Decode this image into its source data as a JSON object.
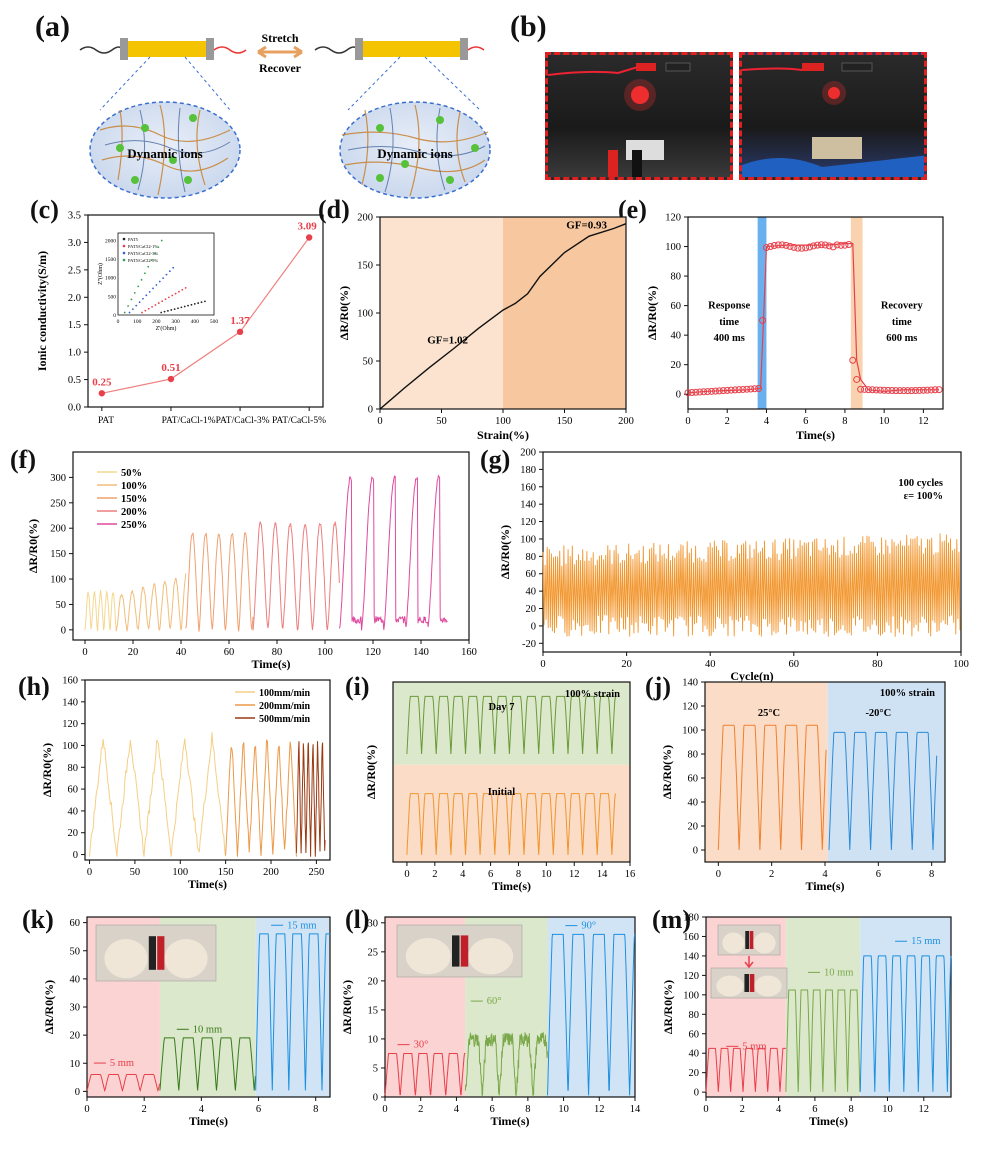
{
  "panels": {
    "a": {
      "letter": "(a)",
      "arrow_top": "Stretch",
      "arrow_bottom": "Recover",
      "left_label": "Dynamic ions",
      "right_label": "Dynamic ions"
    },
    "b": {
      "letter": "(b)"
    },
    "c": {
      "letter": "(c)"
    },
    "d": {
      "letter": "(d)"
    },
    "e": {
      "letter": "(e)"
    },
    "f": {
      "letter": "(f)"
    },
    "g": {
      "letter": "(g)"
    },
    "h": {
      "letter": "(h)"
    },
    "i": {
      "letter": "(i)"
    },
    "j": {
      "letter": "(j)"
    },
    "k": {
      "letter": "(k)"
    },
    "l": {
      "letter": "(l)"
    },
    "m": {
      "letter": "(m)"
    }
  },
  "colors": {
    "red": "#e8404a",
    "orange": "#f29a3a",
    "blue": "#1e90e0",
    "green": "#4a8a2a",
    "yellow": "#f5c400"
  },
  "chart_data": [
    {
      "id": "c",
      "type": "line",
      "ylabel": "Ionic conductivity(S/m)",
      "categories": [
        "PAT5",
        "PAT5/CaCl2-1%",
        "PAT5/CaCl2-3%",
        "PAT5/CaCl2-5%"
      ],
      "category_labels": [
        "PAT",
        "PAT/CaCl-1%PAT/CaCl-3% PAT/CaCl-5%"
      ],
      "values": [
        0.25,
        0.51,
        1.37,
        3.09
      ],
      "value_labels": [
        "0.25",
        "0.51",
        "1.37",
        "3.09"
      ],
      "ylim": [
        0,
        3.5
      ],
      "yticks": [
        "0.0",
        "0.5",
        "1.0",
        "1.5",
        "2.0",
        "2.5",
        "3.0",
        "3.5"
      ],
      "inset": {
        "xlabel": "Z'(Ohm)",
        "ylabel": "Z''(Ohm)",
        "xticks": [
          "0",
          "100",
          "200",
          "300",
          "400",
          "500"
        ],
        "yticks": [
          "0",
          "500",
          "1000",
          "1500",
          "2000"
        ],
        "legend": [
          "PAT5",
          "PAT5/CaCl2-1%",
          "PAT5/CaCl2-3%",
          "PAT5/CaCl2-5%"
        ]
      }
    },
    {
      "id": "d",
      "type": "line",
      "xlabel": "Strain(%)",
      "ylabel": "ΔR/R0(%)",
      "xlim": [
        0,
        200
      ],
      "ylim": [
        0,
        200
      ],
      "xticks": [
        "0",
        "50",
        "100",
        "150",
        "200"
      ],
      "yticks": [
        "0",
        "50",
        "100",
        "150",
        "200"
      ],
      "annotations": [
        "GF=1.02",
        "GF=0.93"
      ],
      "x": [
        0,
        20,
        40,
        60,
        80,
        100,
        110,
        120,
        130,
        150,
        170,
        190,
        200
      ],
      "y": [
        0,
        22,
        43,
        63,
        84,
        103,
        110,
        120,
        138,
        163,
        180,
        188,
        193
      ]
    },
    {
      "id": "e",
      "type": "line",
      "xlabel": "Time(s)",
      "ylabel": "ΔR/R0(%)",
      "xlim": [
        0,
        13
      ],
      "ylim": [
        -10,
        120
      ],
      "xticks": [
        "0",
        "2",
        "4",
        "6",
        "8",
        "10",
        "12"
      ],
      "yticks": [
        "0",
        "20",
        "40",
        "60",
        "80",
        "100",
        "120"
      ],
      "annotations": [
        "Response",
        "time",
        "400 ms",
        "Recovery",
        "time",
        "600 ms"
      ],
      "x": [
        0,
        1,
        2,
        3,
        3.7,
        3.85,
        4.0,
        5,
        6,
        7,
        8,
        8.4,
        8.6,
        8.8,
        9.2,
        10,
        11,
        12,
        12.8
      ],
      "y": [
        1,
        2,
        2.5,
        3,
        4,
        50,
        100,
        101,
        101,
        101,
        102,
        102,
        23,
        10,
        3,
        2,
        3,
        3,
        3
      ]
    },
    {
      "id": "f",
      "type": "line",
      "xlabel": "Time(s)",
      "ylabel": "ΔR/R0(%)",
      "xlim": [
        -5,
        160
      ],
      "ylim": [
        -20,
        350
      ],
      "xticks": [
        "0",
        "20",
        "40",
        "60",
        "80",
        "100",
        "120",
        "140",
        "160"
      ],
      "yticks": [
        "0",
        "50",
        "100",
        "150",
        "200",
        "250",
        "300"
      ],
      "legend": [
        "50%",
        "100%",
        "150%",
        "200%",
        "250%"
      ],
      "peaks": [
        75,
        110,
        190,
        210,
        300
      ],
      "colors": [
        "#f5d890",
        "#f3bd7a",
        "#f0a070",
        "#ec7e7e",
        "#e04a9e"
      ]
    },
    {
      "id": "g",
      "type": "line",
      "xlabel": "Cycle(n)",
      "ylabel": "ΔR/R0(%)",
      "xlim": [
        0,
        100
      ],
      "ylim": [
        -30,
        200
      ],
      "xticks": [
        "0",
        "20",
        "40",
        "60",
        "80",
        "100"
      ],
      "yticks": [
        "-20",
        "0",
        "20",
        "40",
        "60",
        "80",
        "100",
        "120",
        "140",
        "160",
        "180",
        "200"
      ],
      "annotations": [
        "100 cycles",
        "ε= 100%"
      ]
    },
    {
      "id": "h",
      "type": "line",
      "xlabel": "Time(s)",
      "ylabel": "ΔR/R0(%)",
      "xlim": [
        -5,
        265
      ],
      "ylim": [
        -5,
        160
      ],
      "xticks": [
        "0",
        "50",
        "100",
        "150",
        "200",
        "250"
      ],
      "yticks": [
        "0",
        "20",
        "40",
        "60",
        "80",
        "100",
        "120",
        "140",
        "160"
      ],
      "legend": [
        "100mm/min",
        "200mm/min",
        "500mm/min"
      ],
      "colors": [
        "#f5cf86",
        "#ec9a4a",
        "#9a3a12"
      ]
    },
    {
      "id": "i",
      "type": "line",
      "xlabel": "Time(s)",
      "ylabel": "ΔR/R0(%)",
      "xlim": [
        -1,
        16
      ],
      "xticks": [
        "0",
        "2",
        "4",
        "6",
        "8",
        "10",
        "12",
        "14",
        "16"
      ],
      "annotations": [
        "100% strain",
        "Day 7",
        "Initial"
      ]
    },
    {
      "id": "j",
      "type": "line",
      "xlabel": "Time(s)",
      "ylabel": "ΔR/R0(%)",
      "xlim": [
        -0.5,
        8.5
      ],
      "ylim": [
        -10,
        140
      ],
      "xticks": [
        "0",
        "2",
        "4",
        "6",
        "8"
      ],
      "yticks": [
        "0",
        "20",
        "40",
        "60",
        "80",
        "100",
        "120",
        "140"
      ],
      "annotations": [
        "100% strain",
        "25°C",
        "-20°C"
      ]
    },
    {
      "id": "k",
      "type": "line",
      "xlabel": "Time(s)",
      "ylabel": "ΔR/R0(%)",
      "xlim": [
        0,
        8.5
      ],
      "ylim": [
        -2,
        62
      ],
      "xticks": [
        "0",
        "2",
        "4",
        "6",
        "8"
      ],
      "yticks": [
        "0",
        "10",
        "20",
        "30",
        "40",
        "50",
        "60"
      ],
      "annotations": [
        "5 mm",
        "10 mm",
        "15 mm"
      ],
      "levels": [
        6,
        19,
        56
      ]
    },
    {
      "id": "l",
      "type": "line",
      "xlabel": "Time(s)",
      "ylabel": "ΔR/R0(%)",
      "xlim": [
        0,
        14
      ],
      "ylim": [
        0,
        31
      ],
      "xticks": [
        "0",
        "2",
        "4",
        "6",
        "8",
        "10",
        "12",
        "14"
      ],
      "yticks": [
        "0",
        "5",
        "10",
        "15",
        "20",
        "25",
        "30"
      ],
      "annotations": [
        "30°",
        "60°",
        "90°"
      ],
      "levels": [
        7.5,
        11,
        28
      ]
    },
    {
      "id": "m",
      "type": "line",
      "xlabel": "Time(s)",
      "ylabel": "ΔR/R0(%)",
      "xlim": [
        0,
        13.5
      ],
      "ylim": [
        -5,
        180
      ],
      "xticks": [
        "0",
        "2",
        "4",
        "6",
        "8",
        "10",
        "12"
      ],
      "yticks": [
        "0",
        "20",
        "40",
        "60",
        "80",
        "100",
        "120",
        "140",
        "160",
        "180"
      ],
      "annotations": [
        "5 mm",
        "10 mm",
        "15 mm"
      ],
      "levels": [
        45,
        105,
        140
      ]
    }
  ]
}
